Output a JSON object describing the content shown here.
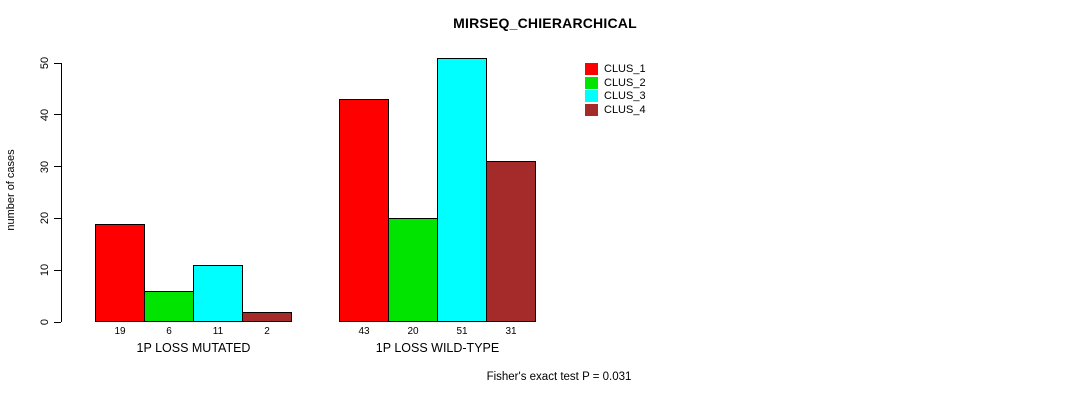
{
  "chart_data": {
    "type": "bar",
    "title": "MIRSEQ_CHIERARCHICAL",
    "xlabel": "",
    "ylabel": "number of cases",
    "categories": [
      "1P LOSS MUTATED",
      "1P LOSS WILD-TYPE"
    ],
    "series": [
      {
        "name": "CLUS_1",
        "color": "#FF0000",
        "values": [
          19,
          43
        ]
      },
      {
        "name": "CLUS_2",
        "color": "#00E400",
        "values": [
          6,
          20
        ]
      },
      {
        "name": "CLUS_3",
        "color": "#00FFFF",
        "values": [
          11,
          51
        ]
      },
      {
        "name": "CLUS_4",
        "color": "#A52A2A",
        "values": [
          2,
          31
        ]
      }
    ],
    "yticks": [
      0,
      10,
      20,
      30,
      40,
      50
    ],
    "ylim": [
      0,
      51
    ],
    "grid": false,
    "bar_value_labels": true,
    "legend_position": "top-right"
  },
  "footer": {
    "text": "Fisher's exact test P = 0.031"
  }
}
